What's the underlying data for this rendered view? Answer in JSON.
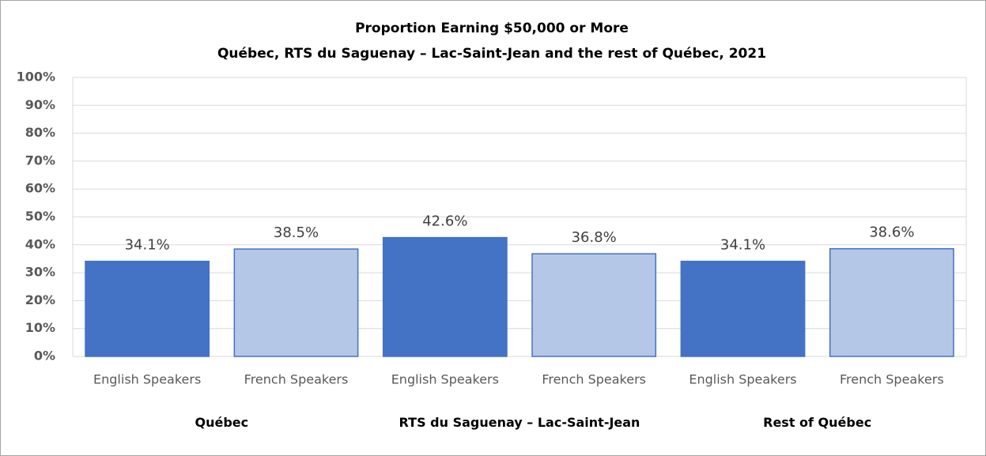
{
  "chart_data": {
    "type": "bar",
    "title": "Proportion Earning $50,000 or More",
    "subtitle": "Québec, RTS du Saguenay – Lac-Saint-Jean  and the rest of Québec, 2021",
    "categories": [
      "English Speakers",
      "French Speakers",
      "English Speakers",
      "French Speakers",
      "English Speakers",
      "French Speakers"
    ],
    "groups": [
      "Québec",
      "RTS du Saguenay – Lac-Saint-Jean",
      "Rest of Québec"
    ],
    "values": [
      34.1,
      38.5,
      42.6,
      36.8,
      34.1,
      38.6
    ],
    "value_labels": [
      "34.1%",
      "38.5%",
      "42.6%",
      "36.8%",
      "34.1%",
      "38.6%"
    ],
    "colors": [
      "#4472c4",
      "#b4c7e7",
      "#4472c4",
      "#b4c7e7",
      "#4472c4",
      "#b4c7e7"
    ],
    "ylim": [
      0,
      100
    ],
    "yticks": [
      {
        "value": 0,
        "label": "0%"
      },
      {
        "value": 10,
        "label": "10%"
      },
      {
        "value": 20,
        "label": "20%"
      },
      {
        "value": 30,
        "label": "30%"
      },
      {
        "value": 40,
        "label": "40%"
      },
      {
        "value": 50,
        "label": "50%"
      },
      {
        "value": 60,
        "label": "60%"
      },
      {
        "value": 70,
        "label": "70%"
      },
      {
        "value": 80,
        "label": "80%"
      },
      {
        "value": 90,
        "label": "90%"
      },
      {
        "value": 100,
        "label": "100%"
      }
    ],
    "grid": true
  }
}
